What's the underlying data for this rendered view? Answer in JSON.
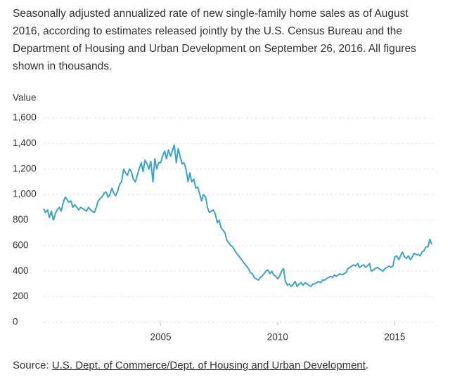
{
  "description": "Seasonally adjusted annualized rate of new single-family home sales as of August 2016, according to estimates released jointly by the U.S. Census Bureau and the Department of Housing and Urban Development on September 26, 2016. All figures shown in thousands.",
  "source_prefix": "Source:",
  "source_link": "U.S. Dept. of Commerce/Dept. of Housing and Urban Development",
  "source_suffix": ".",
  "chart_data": {
    "type": "line",
    "y_label": "Value",
    "color": "#3ba3c8",
    "grid": true,
    "xlim": [
      2000,
      2016.67
    ],
    "xticks": [
      2005,
      2010,
      2015
    ],
    "ylim": [
      0,
      1600
    ],
    "yticks": [
      0,
      200,
      400,
      600,
      800,
      {
        "value": 1000,
        "label": "1,000"
      },
      {
        "value": 1200,
        "label": "1,200"
      },
      {
        "value": 1400,
        "label": "1,400"
      },
      {
        "value": 1600,
        "label": "1,600"
      }
    ],
    "x": [
      2000.0,
      2000.08,
      2000.17,
      2000.25,
      2000.33,
      2000.42,
      2000.5,
      2000.58,
      2000.67,
      2000.75,
      2000.83,
      2000.92,
      2001.0,
      2001.08,
      2001.17,
      2001.25,
      2001.33,
      2001.42,
      2001.5,
      2001.58,
      2001.67,
      2001.75,
      2001.83,
      2001.92,
      2002.0,
      2002.08,
      2002.17,
      2002.25,
      2002.33,
      2002.42,
      2002.5,
      2002.58,
      2002.67,
      2002.75,
      2002.83,
      2002.92,
      2003.0,
      2003.08,
      2003.17,
      2003.25,
      2003.33,
      2003.42,
      2003.5,
      2003.58,
      2003.67,
      2003.75,
      2003.83,
      2003.92,
      2004.0,
      2004.08,
      2004.17,
      2004.25,
      2004.33,
      2004.42,
      2004.5,
      2004.58,
      2004.67,
      2004.75,
      2004.83,
      2004.92,
      2005.0,
      2005.08,
      2005.17,
      2005.25,
      2005.33,
      2005.42,
      2005.5,
      2005.58,
      2005.67,
      2005.75,
      2005.83,
      2005.92,
      2006.0,
      2006.08,
      2006.17,
      2006.25,
      2006.33,
      2006.42,
      2006.5,
      2006.58,
      2006.67,
      2006.75,
      2006.83,
      2006.92,
      2007.0,
      2007.08,
      2007.17,
      2007.25,
      2007.33,
      2007.42,
      2007.5,
      2007.58,
      2007.67,
      2007.75,
      2007.83,
      2007.92,
      2008.0,
      2008.08,
      2008.17,
      2008.25,
      2008.33,
      2008.42,
      2008.5,
      2008.58,
      2008.67,
      2008.75,
      2008.83,
      2008.92,
      2009.0,
      2009.08,
      2009.17,
      2009.25,
      2009.33,
      2009.42,
      2009.5,
      2009.58,
      2009.67,
      2009.75,
      2009.83,
      2009.92,
      2010.0,
      2010.08,
      2010.17,
      2010.25,
      2010.33,
      2010.42,
      2010.5,
      2010.58,
      2010.67,
      2010.75,
      2010.83,
      2010.92,
      2011.0,
      2011.08,
      2011.17,
      2011.25,
      2011.33,
      2011.42,
      2011.5,
      2011.58,
      2011.67,
      2011.75,
      2011.83,
      2011.92,
      2012.0,
      2012.08,
      2012.17,
      2012.25,
      2012.33,
      2012.42,
      2012.5,
      2012.58,
      2012.67,
      2012.75,
      2012.83,
      2012.92,
      2013.0,
      2013.08,
      2013.17,
      2013.25,
      2013.33,
      2013.42,
      2013.5,
      2013.58,
      2013.67,
      2013.75,
      2013.83,
      2013.92,
      2014.0,
      2014.08,
      2014.17,
      2014.25,
      2014.33,
      2014.42,
      2014.5,
      2014.58,
      2014.67,
      2014.75,
      2014.83,
      2014.92,
      2015.0,
      2015.08,
      2015.17,
      2015.25,
      2015.33,
      2015.42,
      2015.5,
      2015.58,
      2015.67,
      2015.75,
      2015.83,
      2015.92,
      2016.0,
      2016.08,
      2016.17,
      2016.25,
      2016.33,
      2016.42,
      2016.5,
      2016.58
    ],
    "values": [
      890,
      860,
      880,
      820,
      870,
      800,
      850,
      880,
      900,
      870,
      930,
      980,
      960,
      940,
      950,
      900,
      920,
      900,
      880,
      900,
      890,
      880,
      870,
      900,
      880,
      870,
      860,
      900,
      950,
      970,
      980,
      1010,
      1020,
      980,
      1000,
      1050,
      1010,
      990,
      1030,
      1080,
      1100,
      1200,
      1170,
      1150,
      1200,
      1180,
      1120,
      1100,
      1150,
      1200,
      1250,
      1180,
      1270,
      1240,
      1200,
      1260,
      1100,
      1280,
      1200,
      1250,
      1250,
      1300,
      1340,
      1280,
      1350,
      1300,
      1340,
      1389,
      1250,
      1360,
      1300,
      1240,
      1250,
      1200,
      1100,
      1170,
      1100,
      1120,
      1050,
      1060,
      1000,
      950,
      1000,
      980,
      900,
      860,
      870,
      880,
      850,
      780,
      800,
      740,
      720,
      700,
      640,
      620,
      600,
      590,
      560,
      540,
      520,
      500,
      480,
      460,
      440,
      420,
      390,
      380,
      350,
      340,
      330,
      350,
      360,
      380,
      400,
      410,
      380,
      400,
      370,
      360,
      340,
      360,
      400,
      420,
      320,
      290,
      300,
      280,
      300,
      320,
      280,
      300,
      310,
      290,
      310,
      300,
      290,
      280,
      300,
      300,
      310,
      320,
      310,
      330,
      330,
      340,
      350,
      360,
      350,
      370,
      360,
      370,
      380,
      370,
      380,
      390,
      420,
      430,
      440,
      450,
      440,
      460,
      430,
      440,
      450,
      430,
      440,
      460,
      400,
      410,
      420,
      430,
      420,
      410,
      400,
      420,
      430,
      440,
      430,
      440,
      510,
      520,
      490,
      520,
      550,
      510,
      500,
      520,
      490,
      510,
      540,
      530,
      530,
      520,
      550,
      560,
      590,
      590,
      650,
      610
    ]
  }
}
